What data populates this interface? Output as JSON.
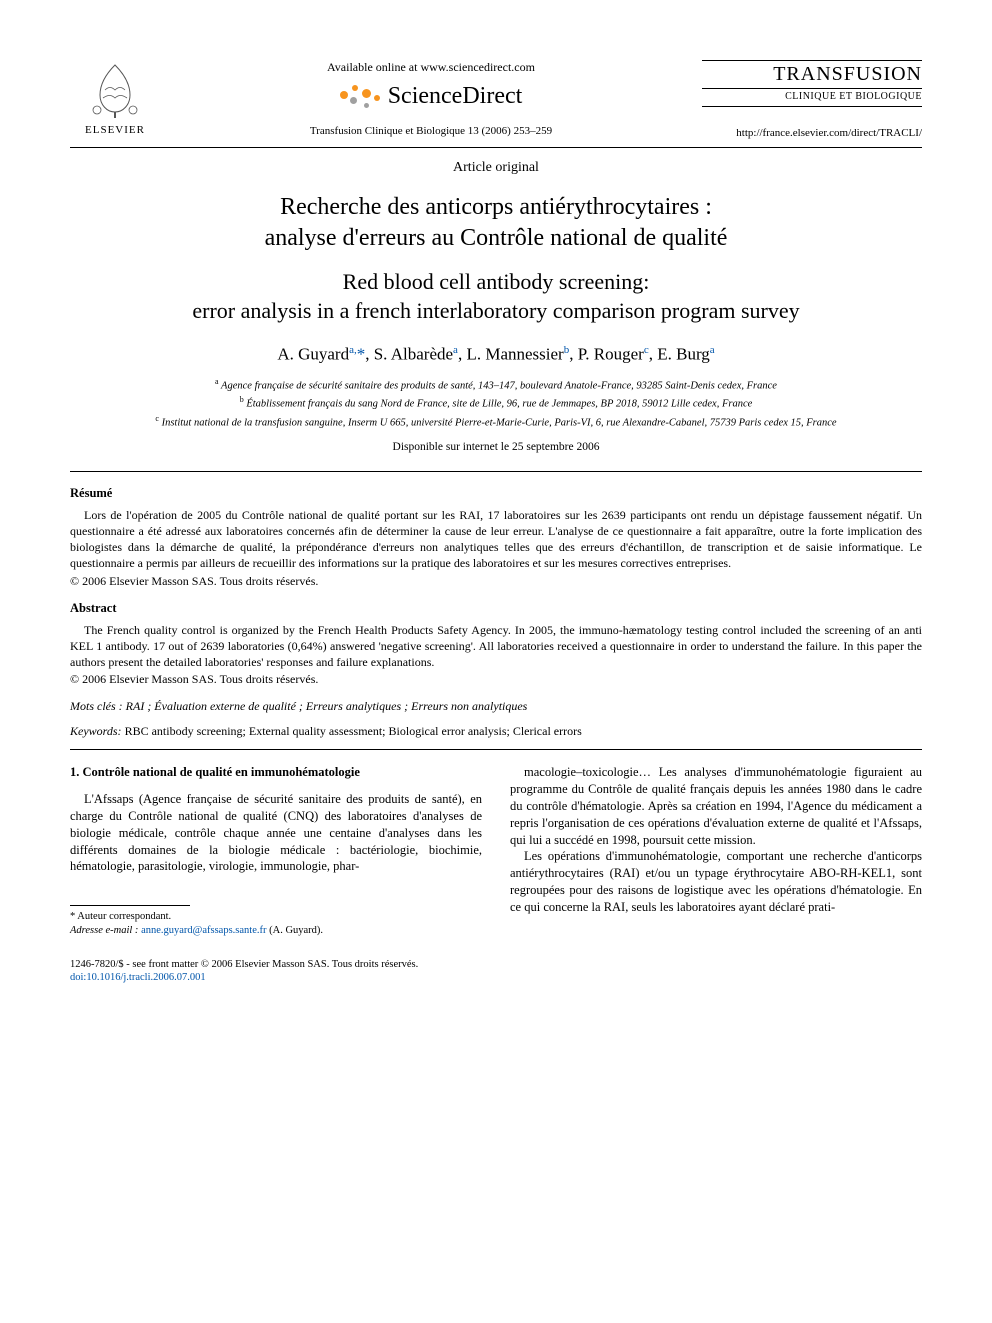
{
  "header": {
    "elsevier_label": "ELSEVIER",
    "available_online": "Available online at www.sciencedirect.com",
    "sciencedirect_text": "ScienceDirect",
    "sd_dot_colors": [
      "#f7941e",
      "#f7941e",
      "#a0a0a0",
      "#f7941e",
      "#a0a0a0",
      "#f7941e"
    ],
    "journal_ref": "Transfusion Clinique et Biologique 13 (2006) 253–259",
    "journal_name": "TRANSFUSION",
    "journal_sub": "CLINIQUE ET BIOLOGIQUE",
    "journal_url": "http://france.elsevier.com/direct/TRACLI/"
  },
  "article_type": "Article original",
  "title_fr": "Recherche des anticorps antiérythrocytaires :\nanalyse d'erreurs au Contrôle national de qualité",
  "title_en": "Red blood cell antibody screening:\nerror analysis in a french interlaboratory comparison program survey",
  "authors_html": "A. Guyard<sup>a,</sup><span class='corr'>*</span>, S. Albarède<sup>a</sup>, L. Mannessier<sup>b</sup>, P. Rouger<sup>c</sup>, E. Burg<sup>a</sup>",
  "affiliations": [
    "a Agence française de sécurité sanitaire des produits de santé, 143–147, boulevard Anatole-France, 93285 Saint-Denis cedex, France",
    "b Établissement français du sang Nord de France, site de Lille, 96, rue de Jemmapes, BP 2018, 59012 Lille cedex, France",
    "c Institut national de la transfusion sanguine, Inserm U 665, université Pierre-et-Marie-Curie, Paris-VI, 6, rue Alexandre-Cabanel, 75739 Paris cedex 15, France"
  ],
  "pub_date": "Disponible sur internet le 25 septembre 2006",
  "resume": {
    "heading": "Résumé",
    "body": "Lors de l'opération de 2005 du Contrôle national de qualité portant sur les RAI, 17 laboratoires sur les 2639 participants ont rendu un dépistage faussement négatif. Un questionnaire a été adressé aux laboratoires concernés afin de déterminer la cause de leur erreur. L'analyse de ce questionnaire a fait apparaître, outre la forte implication des biologistes dans la démarche de qualité, la prépondérance d'erreurs non analytiques telles que des erreurs d'échantillon, de transcription et de saisie informatique. Le questionnaire a permis par ailleurs de recueillir des informations sur la pratique des laboratoires et sur les mesures correctives entreprises.",
    "copyright": "© 2006 Elsevier Masson SAS. Tous droits réservés."
  },
  "abstract": {
    "heading": "Abstract",
    "body": "The French quality control is organized by the French Health Products Safety Agency. In 2005, the immuno-hæmatology testing control included the screening of an anti KEL 1 antibody. 17 out of 2639 laboratories (0,64%) answered 'negative screening'. All laboratories received a questionnaire in order to understand the failure. In this paper the authors present the detailed laboratories' responses and failure explanations.",
    "copyright": "© 2006 Elsevier Masson SAS. Tous droits réservés."
  },
  "mots_cles": {
    "label": "Mots clés :",
    "value": " RAI ; Évaluation externe de qualité ; Erreurs analytiques ; Erreurs non analytiques"
  },
  "keywords": {
    "label": "Keywords:",
    "value": " RBC antibody screening; External quality assessment; Biological error analysis; Clerical errors"
  },
  "body": {
    "section_heading": "1. Contrôle national de qualité en immunohématologie",
    "col1_p1": "L'Afssaps (Agence française de sécurité sanitaire des produits de santé), en charge du Contrôle national de qualité (CNQ) des laboratoires d'analyses de biologie médicale, contrôle chaque année une centaine d'analyses dans les différents domaines de la biologie médicale : bactériologie, biochimie, hématologie, parasitologie, virologie, immunologie, phar-",
    "col2_p1": "macologie–toxicologie… Les analyses d'immunohématologie figuraient au programme du Contrôle de qualité français depuis les années 1980 dans le cadre du contrôle d'hématologie. Après sa création en 1994, l'Agence du médicament a repris l'organisation de ces opérations d'évaluation externe de qualité et l'Afssaps, qui lui a succédé en 1998, poursuit cette mission.",
    "col2_p2": "Les opérations d'immunohématologie, comportant une recherche d'anticorps antiérythrocytaires (RAI) et/ou un typage érythrocytaire ABO-RH-KEL1, sont regroupées pour des raisons de logistique avec les opérations d'hématologie. En ce qui concerne la RAI, seuls les laboratoires ayant déclaré prati-"
  },
  "footnote": {
    "corr": "* Auteur correspondant.",
    "email_label": "Adresse e-mail :",
    "email": "anne.guyard@afssaps.sante.fr",
    "email_suffix": " (A. Guyard)."
  },
  "bottom": {
    "issn": "1246-7820/$ - see front matter © 2006 Elsevier Masson SAS. Tous droits réservés.",
    "doi": "doi:10.1016/j.tracli.2006.07.001"
  }
}
